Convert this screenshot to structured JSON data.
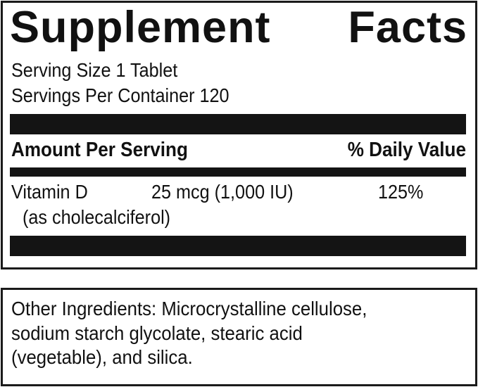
{
  "label": {
    "title_words": [
      "Supplement",
      "Facts"
    ],
    "serving_size": "Serving Size 1 Tablet",
    "servings_per_container": "Servings Per Container 120",
    "header": {
      "amount": "Amount Per Serving",
      "daily_value": "% Daily Value"
    },
    "nutrients": [
      {
        "name": "Vitamin D",
        "form": "(as cholecalciferol)",
        "amount": "25 mcg (1,000 IU)",
        "daily_value": "125%"
      }
    ]
  },
  "other_ingredients": {
    "lines": [
      "Other Ingredients: Microcrystalline cellulose,",
      "sodium starch glycolate, stearic acid",
      "(vegetable), and silica."
    ]
  }
}
